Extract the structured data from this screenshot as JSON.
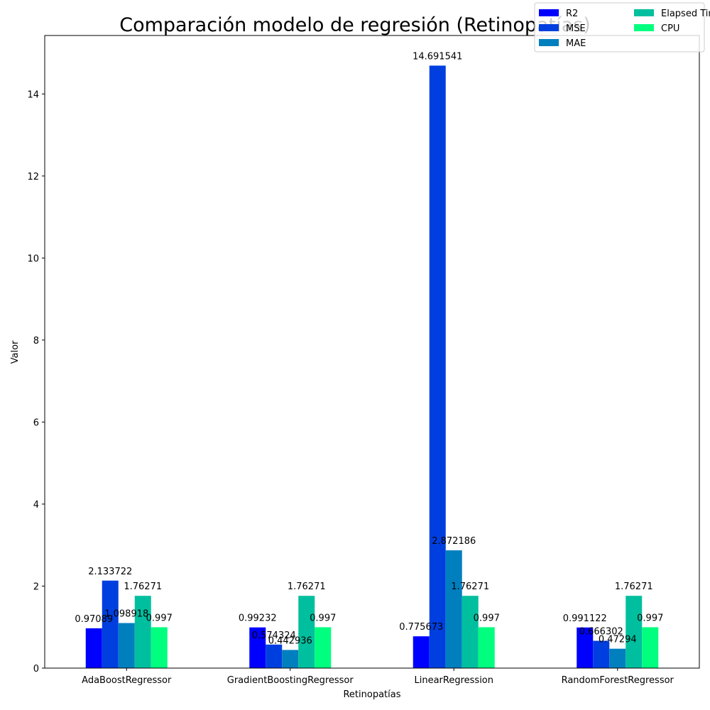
{
  "chart_data": {
    "type": "bar",
    "title": "Comparación modelo de regresión (Retinopatías)",
    "xlabel": "Retinopatías",
    "ylabel": "Valor",
    "categories": [
      "AdaBoostRegressor",
      "GradientBoostingRegressor",
      "LinearRegression",
      "RandomForestRegressor"
    ],
    "series": [
      {
        "name": "R2",
        "color": "#0000ff",
        "values": [
          0.97089,
          0.99232,
          0.775673,
          0.991122
        ],
        "labels": [
          "0.97089",
          "0.99232",
          "0.775673",
          "0.991122"
        ]
      },
      {
        "name": "MSE",
        "color": "#003fdf",
        "values": [
          2.133722,
          0.574324,
          14.691541,
          0.666302
        ],
        "labels": [
          "2.133722",
          "0.574324",
          "14.691541",
          "0.666302"
        ]
      },
      {
        "name": "MAE",
        "color": "#007fbf",
        "values": [
          1.098918,
          0.442936,
          2.872186,
          0.47294
        ],
        "labels": [
          "1.098918",
          "0.442936",
          "2.872186",
          "0.47294"
        ]
      },
      {
        "name": "Elapsed Time",
        "color": "#00bf9f",
        "values": [
          1.76271,
          1.76271,
          1.76271,
          1.76271
        ],
        "labels": [
          "1.76271",
          "1.76271",
          "1.76271",
          "1.76271"
        ]
      },
      {
        "name": "CPU",
        "color": "#00ff7f",
        "values": [
          0.997,
          0.997,
          0.997,
          0.997
        ],
        "labels": [
          "0.997",
          "0.997",
          "0.997",
          "0.997"
        ]
      }
    ],
    "ylim": [
      0,
      15.426
    ],
    "yticks": [
      0,
      2,
      4,
      6,
      8,
      10,
      12,
      14
    ],
    "grid": false,
    "legend_position": "top-right",
    "legend_columns": 2
  }
}
